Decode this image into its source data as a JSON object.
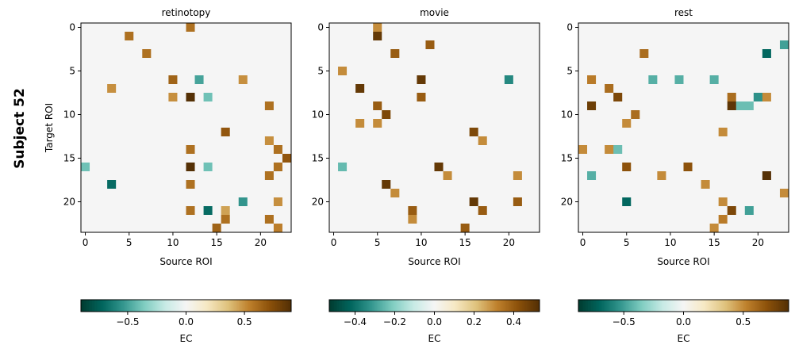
{
  "figure": {
    "row_label": "Subject 52"
  },
  "colormap": [
    "#003c30",
    "#01665e",
    "#35978f",
    "#80cdc1",
    "#c7eae5",
    "#f5f5f5",
    "#f6e8c3",
    "#dfc27d",
    "#bf812d",
    "#8c510a",
    "#543005"
  ],
  "chart_data": [
    {
      "type": "heatmap",
      "title": "retinotopy",
      "xlabel": "Source ROI",
      "ylabel": "Target ROI",
      "size": 24,
      "xticks": [
        0,
        5,
        10,
        15,
        20
      ],
      "yticks": [
        0,
        5,
        10,
        15,
        20
      ],
      "default_value": 0,
      "colorbar": {
        "label": "EC",
        "range": [
          -0.9,
          0.9
        ],
        "ticks": [
          -0.5,
          0.0,
          0.5
        ],
        "tick_labels": [
          "−0.5",
          "0.0",
          "0.5"
        ]
      },
      "cells": [
        [
          0,
          12,
          0.6
        ],
        [
          1,
          5,
          0.6
        ],
        [
          3,
          7,
          0.6
        ],
        [
          6,
          10,
          0.65
        ],
        [
          6,
          13,
          -0.5
        ],
        [
          6,
          18,
          0.5
        ],
        [
          7,
          3,
          0.5
        ],
        [
          8,
          12,
          0.9
        ],
        [
          8,
          10,
          0.5
        ],
        [
          8,
          14,
          -0.4
        ],
        [
          9,
          21,
          0.6
        ],
        [
          12,
          16,
          0.7
        ],
        [
          13,
          21,
          0.5
        ],
        [
          14,
          12,
          0.6
        ],
        [
          14,
          22,
          0.6
        ],
        [
          15,
          23,
          0.7
        ],
        [
          16,
          12,
          0.95
        ],
        [
          16,
          0,
          -0.4
        ],
        [
          16,
          14,
          -0.4
        ],
        [
          16,
          22,
          0.6
        ],
        [
          17,
          21,
          0.6
        ],
        [
          18,
          3,
          -0.7
        ],
        [
          18,
          12,
          0.6
        ],
        [
          20,
          18,
          -0.55
        ],
        [
          20,
          22,
          0.5
        ],
        [
          21,
          12,
          0.6
        ],
        [
          21,
          14,
          -0.7
        ],
        [
          21,
          16,
          0.45
        ],
        [
          22,
          16,
          0.6
        ],
        [
          22,
          21,
          0.6
        ],
        [
          23,
          15,
          0.65
        ],
        [
          23,
          22,
          0.55
        ]
      ]
    },
    {
      "type": "heatmap",
      "title": "movie",
      "xlabel": "Source ROI",
      "ylabel": "",
      "size": 24,
      "xticks": [
        0,
        5,
        10,
        15,
        20
      ],
      "yticks": [
        0,
        5,
        10,
        15,
        20
      ],
      "default_value": 0,
      "colorbar": {
        "label": "EC",
        "range": [
          -0.53,
          0.53
        ],
        "ticks": [
          -0.4,
          -0.2,
          0.0,
          0.2,
          0.4
        ],
        "tick_labels": [
          "−0.4",
          "−0.2",
          "0.0",
          "0.2",
          "0.4"
        ]
      },
      "cells": [
        [
          0,
          5,
          0.3
        ],
        [
          1,
          5,
          0.5
        ],
        [
          2,
          11,
          0.4
        ],
        [
          3,
          7,
          0.4
        ],
        [
          5,
          1,
          0.3
        ],
        [
          6,
          10,
          0.5
        ],
        [
          6,
          20,
          -0.35
        ],
        [
          7,
          3,
          0.5
        ],
        [
          8,
          10,
          0.4
        ],
        [
          9,
          5,
          0.4
        ],
        [
          10,
          6,
          0.45
        ],
        [
          11,
          3,
          0.3
        ],
        [
          11,
          5,
          0.3
        ],
        [
          12,
          16,
          0.45
        ],
        [
          13,
          17,
          0.3
        ],
        [
          16,
          12,
          0.5
        ],
        [
          16,
          1,
          -0.25
        ],
        [
          17,
          13,
          0.3
        ],
        [
          17,
          21,
          0.3
        ],
        [
          18,
          6,
          0.5
        ],
        [
          19,
          7,
          0.3
        ],
        [
          20,
          16,
          0.5
        ],
        [
          20,
          21,
          0.4
        ],
        [
          21,
          9,
          0.4
        ],
        [
          21,
          17,
          0.4
        ],
        [
          22,
          9,
          0.3
        ],
        [
          23,
          15,
          0.4
        ]
      ]
    },
    {
      "type": "heatmap",
      "title": "rest",
      "xlabel": "Source ROI",
      "ylabel": "",
      "size": 24,
      "xticks": [
        0,
        5,
        10,
        15,
        20
      ],
      "yticks": [
        0,
        5,
        10,
        15,
        20
      ],
      "default_value": 0,
      "colorbar": {
        "label": "EC",
        "range": [
          -0.88,
          0.88
        ],
        "ticks": [
          -0.5,
          0.0,
          0.5
        ],
        "tick_labels": [
          "−0.5",
          "0.0",
          "0.5"
        ]
      },
      "cells": [
        [
          2,
          23,
          -0.5
        ],
        [
          3,
          7,
          0.6
        ],
        [
          3,
          21,
          -0.7
        ],
        [
          6,
          1,
          0.55
        ],
        [
          6,
          8,
          -0.45
        ],
        [
          6,
          11,
          -0.45
        ],
        [
          6,
          15,
          -0.45
        ],
        [
          7,
          3,
          0.6
        ],
        [
          8,
          4,
          0.75
        ],
        [
          8,
          17,
          0.6
        ],
        [
          8,
          20,
          -0.55
        ],
        [
          8,
          21,
          0.5
        ],
        [
          9,
          1,
          0.8
        ],
        [
          9,
          17,
          0.85
        ],
        [
          9,
          18,
          -0.4
        ],
        [
          9,
          19,
          -0.4
        ],
        [
          10,
          6,
          0.6
        ],
        [
          11,
          5,
          0.5
        ],
        [
          12,
          16,
          0.5
        ],
        [
          14,
          0,
          0.5
        ],
        [
          14,
          3,
          0.5
        ],
        [
          14,
          4,
          -0.4
        ],
        [
          16,
          5,
          0.7
        ],
        [
          16,
          12,
          0.7
        ],
        [
          17,
          1,
          -0.45
        ],
        [
          17,
          9,
          0.5
        ],
        [
          17,
          21,
          0.95
        ],
        [
          18,
          14,
          0.5
        ],
        [
          19,
          23,
          0.5
        ],
        [
          20,
          5,
          -0.7
        ],
        [
          20,
          16,
          0.5
        ],
        [
          21,
          17,
          0.75
        ],
        [
          21,
          19,
          -0.5
        ],
        [
          22,
          16,
          0.55
        ],
        [
          23,
          15,
          0.5
        ]
      ]
    }
  ]
}
